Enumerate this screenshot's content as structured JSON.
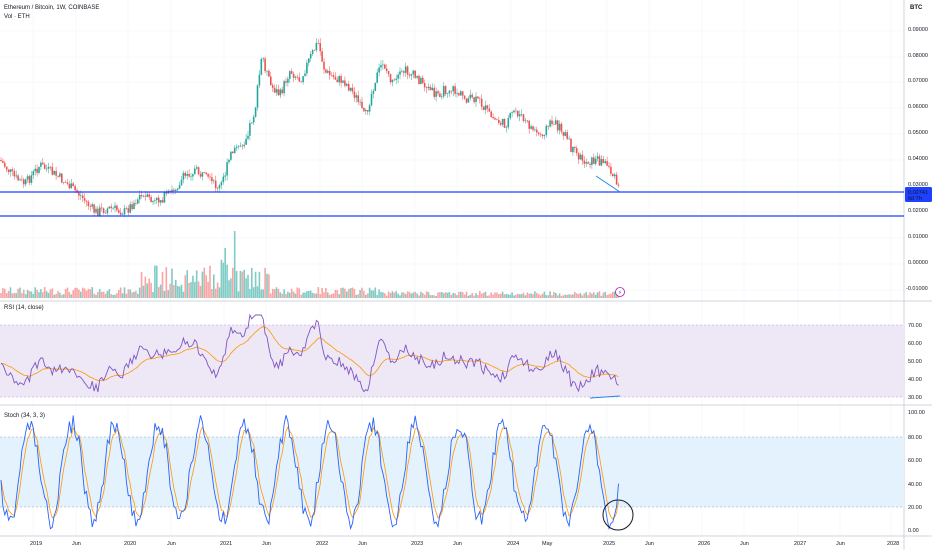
{
  "header": {
    "title": "Ethereum / Bitcoin, 1W, COINBASE",
    "volume_label": "Vol · ETH"
  },
  "price_axis": {
    "currency": "BTC",
    "ticks": [
      "0.09000",
      "0.08000",
      "0.07000",
      "0.06000",
      "0.05000",
      "0.04000",
      "0.03000",
      "0.02000",
      "0.01000",
      "0.00000",
      "-0.01000"
    ],
    "current_price": "0.02741",
    "countdown": "6d 7h"
  },
  "rsi_panel": {
    "label": "RSI (14, close)",
    "ticks": [
      "70.00",
      "60.00",
      "50.00",
      "40.00",
      "30.00"
    ]
  },
  "stoch_panel": {
    "label": "Stoch (34, 3, 3)",
    "ticks": [
      "100.00",
      "80.00",
      "60.00",
      "40.00",
      "20.00",
      "0.00"
    ]
  },
  "time_axis": {
    "labels": [
      "2019",
      "Jun",
      "2020",
      "Jun",
      "2021",
      "Jun",
      "2022",
      "Jun",
      "2023",
      "Jun",
      "2024",
      "May",
      "2025",
      "Jun",
      "2026",
      "Jun",
      "2027",
      "Jun",
      "2028"
    ]
  },
  "colors": {
    "up": "#26a69a",
    "down": "#ef5350",
    "rsi_line": "#7e57c2",
    "signal_line": "#ff9800",
    "stoch_k": "#2962ff",
    "support_line": "#1e40ff",
    "rsi_band": "#ede7f6",
    "stoch_band": "#e3f2fd"
  },
  "icons": {
    "event_marker": "lightning-icon"
  },
  "event_marker_glyph": "⚡"
}
